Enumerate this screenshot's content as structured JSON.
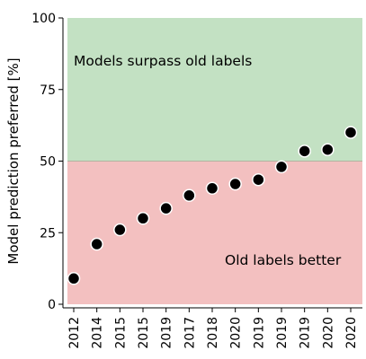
{
  "chart_data": {
    "type": "scatter",
    "title": "",
    "xlabel": "",
    "ylabel": "Model prediction preferred [%]",
    "ylim": [
      0,
      100
    ],
    "yticks": [
      0,
      25,
      50,
      75,
      100
    ],
    "categories": [
      "2012",
      "2014",
      "2015",
      "2015",
      "2019",
      "2017",
      "2018",
      "2020",
      "2019",
      "2019",
      "2019",
      "2020",
      "2020"
    ],
    "values": [
      9,
      21,
      26,
      30,
      33.5,
      38,
      40.5,
      42,
      43.5,
      48,
      53.5,
      54,
      60
    ],
    "threshold": 50,
    "regions": [
      {
        "label": "Models surpass old labels",
        "from": 50,
        "to": 100,
        "color": "#c3e1c3"
      },
      {
        "label": "Old labels better",
        "from": 0,
        "to": 50,
        "color": "#f3c0c0"
      }
    ],
    "marker_color": "#000000",
    "grid": false,
    "legend": "none"
  }
}
